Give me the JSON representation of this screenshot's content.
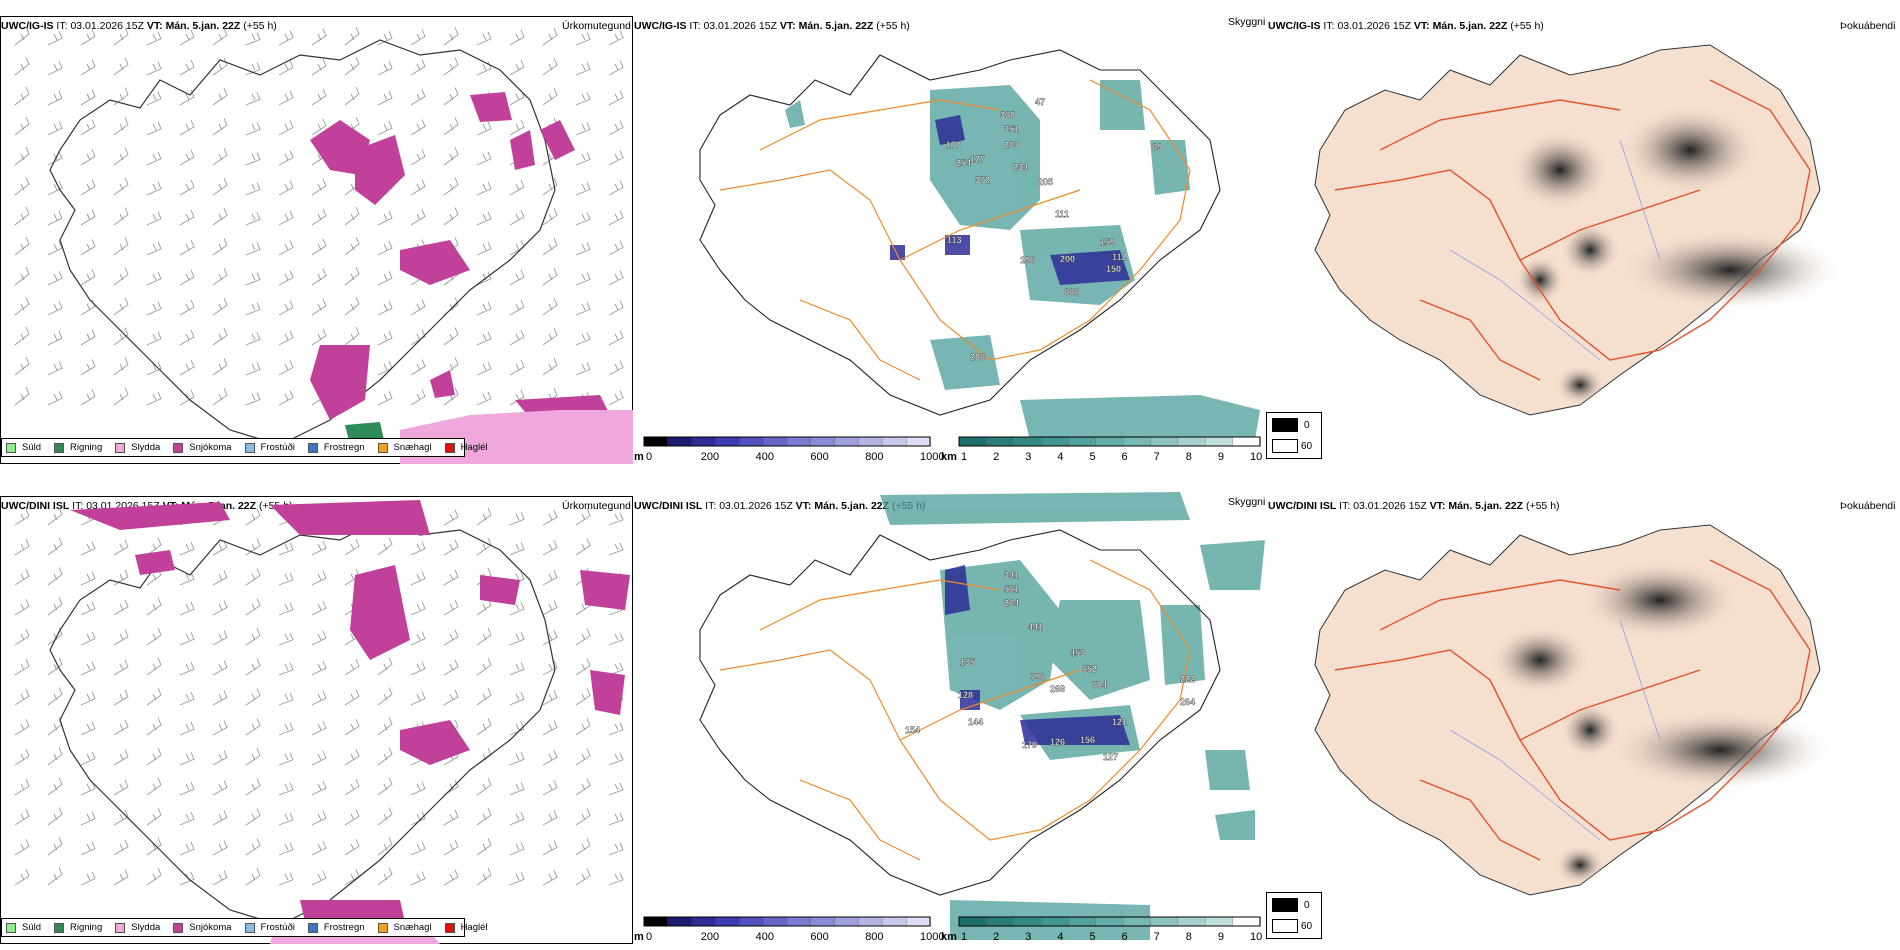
{
  "rows": [
    {
      "model": "UWC/IG-IS",
      "it_label": "IT:",
      "it_value": "03.01.2026 15Z",
      "vt_label": "VT:",
      "vt_value": "Mán. 5.jan. 22Z",
      "lead": "(+55 h)"
    },
    {
      "model": "UWC/DINI ISL",
      "it_label": "IT:",
      "it_value": "03.01.2026 15Z",
      "vt_label": "VT:",
      "vt_value": "Mán. 5.jan. 22Z",
      "lead": "(+55 h)"
    }
  ],
  "panels": {
    "precip_type": "Úrkomutegund",
    "visibility": "Skyggni",
    "fog": "Þokuábendi"
  },
  "precip_legend": [
    {
      "label": "Súld",
      "color": "#90ee90"
    },
    {
      "label": "Rigning",
      "color": "#2e8b57"
    },
    {
      "label": "Slydda",
      "color": "#f0a8dc"
    },
    {
      "label": "Snjókoma",
      "color": "#c0409a"
    },
    {
      "label": "Frostúði",
      "color": "#87bde8"
    },
    {
      "label": "Frostregn",
      "color": "#3a72c4"
    },
    {
      "label": "Snæhagl",
      "color": "#f0a020"
    },
    {
      "label": "Haglél",
      "color": "#e01010"
    }
  ],
  "vis_m_scale": {
    "unit": "m",
    "ticks": [
      "0",
      "200",
      "400",
      "600",
      "800",
      "1000"
    ],
    "colors": [
      "#000000",
      "#1a1a6e",
      "#2d2d96",
      "#3d3db0",
      "#5050c0",
      "#6666c8",
      "#7a7ad0",
      "#8c8cd6",
      "#a0a0dc",
      "#b4b4e4",
      "#c8c8ec",
      "#dcdcf4"
    ]
  },
  "vis_km_scale": {
    "unit": "km",
    "ticks": [
      "1",
      "2",
      "3",
      "4",
      "5",
      "6",
      "7",
      "8",
      "9",
      "10"
    ],
    "colors": [
      "#1f6f6b",
      "#2a7d78",
      "#358a85",
      "#429691",
      "#52a19c",
      "#64aca8",
      "#78b8b4",
      "#8ec4c1",
      "#a6d1ce",
      "#c0dfdd",
      "#ffffff"
    ]
  },
  "fog_legend": [
    {
      "label": "0",
      "color": "#000000"
    },
    {
      "label": "60",
      "color": "#ffffff"
    }
  ],
  "vis_labels": [
    [
      "368",
      "351",
      "283",
      "170",
      "234",
      "127",
      "372",
      "205",
      "111",
      "159",
      "196",
      "200",
      "112",
      "150",
      "666",
      "286",
      "69",
      "47",
      "254",
      "113"
    ],
    [
      "341",
      "561",
      "264",
      "441",
      "796",
      "453",
      "652",
      "704",
      "268",
      "126",
      "156",
      "127",
      "179",
      "128",
      "135",
      "154",
      "222",
      "264",
      "121",
      "144"
    ]
  ],
  "colors": {
    "snow": "#c0409a",
    "sleet": "#f0a8dc",
    "rain": "#2e8b57",
    "teal": "#4a9d98",
    "road": "#f08a28",
    "land": "#f5dfcf",
    "roadred": "#e8502a",
    "river": "#8aa0e8"
  }
}
